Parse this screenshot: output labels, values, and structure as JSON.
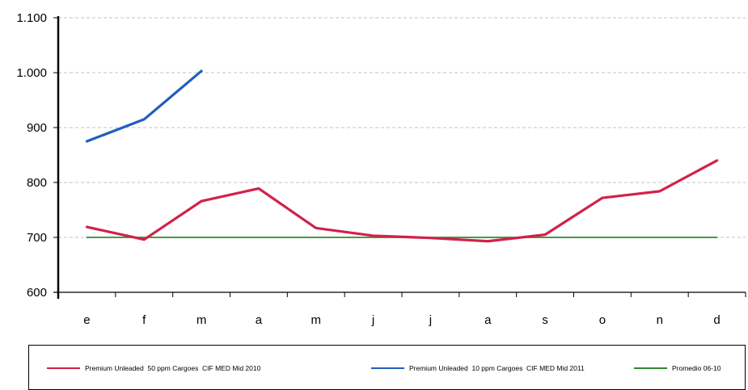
{
  "chart_data": {
    "type": "line",
    "categories": [
      "e",
      "f",
      "m",
      "a",
      "m",
      "j",
      "j",
      "a",
      "s",
      "o",
      "n",
      "d"
    ],
    "ylim": [
      600,
      1100
    ],
    "yticks": [
      600,
      700,
      800,
      900,
      1000,
      1100
    ],
    "ytick_labels": [
      "600",
      "700",
      "800",
      "900",
      "1.000",
      "1.100"
    ],
    "grid": "horizontal dashed",
    "legend_position": "bottom",
    "series": [
      {
        "name": "Premium Unleaded  50 ppm Cargoes  CIF MED Mid 2010",
        "color": "#d0224a",
        "values": [
          719,
          696,
          766,
          789,
          717,
          703,
          699,
          693,
          705,
          772,
          784,
          840
        ]
      },
      {
        "name": "Premium Unleaded  10 ppm Cargoes  CIF MED Mid 2011",
        "color": "#1f5fbf",
        "values": [
          875,
          915,
          1003,
          null,
          null,
          null,
          null,
          null,
          null,
          null,
          null,
          null
        ]
      },
      {
        "name": "Promedio 06-10",
        "color": "#2e8b2e",
        "values": [
          700,
          700,
          700,
          700,
          700,
          700,
          700,
          700,
          700,
          700,
          700,
          700
        ]
      }
    ]
  }
}
